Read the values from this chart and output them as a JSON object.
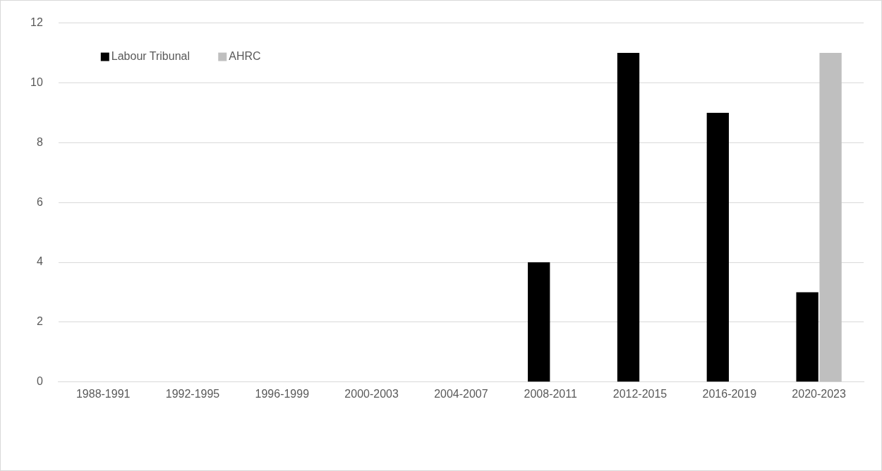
{
  "chart_data": {
    "type": "bar",
    "categories": [
      "1988-1991",
      "1992-1995",
      "1996-1999",
      "2000-2003",
      "2004-2007",
      "2008-2011",
      "2012-2015",
      "2016-2019",
      "2020-2023"
    ],
    "series": [
      {
        "name": "Labour Tribunal",
        "color": "#000000",
        "values": [
          0,
          0,
          0,
          0,
          0,
          4,
          11,
          9,
          3
        ]
      },
      {
        "name": "AHRC",
        "color": "#bfbfbf",
        "values": [
          0,
          0,
          0,
          0,
          0,
          0,
          0,
          0,
          11
        ]
      }
    ],
    "ylim": [
      0,
      12
    ],
    "yticks": [
      0,
      2,
      4,
      6,
      8,
      10,
      12
    ],
    "grid": "y",
    "legend": "top left"
  }
}
